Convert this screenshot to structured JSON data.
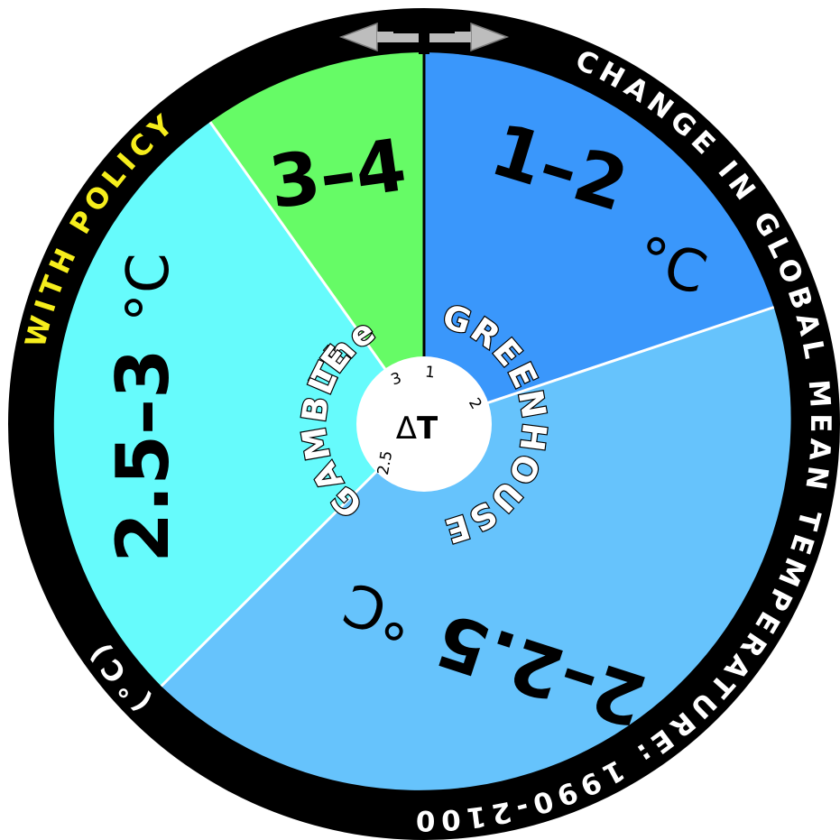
{
  "ring": {
    "policy_label": "WITH POLICY",
    "caption": "CHANGE IN GLOBAL MEAN TEMPERATURE: 1990-2100",
    "unit": "(°C)"
  },
  "title": {
    "word_the": "The",
    "word_greenhouse": "GREENHOUSE",
    "word_gamble": "GAMBLE"
  },
  "hub": {
    "symbol_delta": "Δ",
    "symbol_t": "T",
    "pointer_labels": [
      "1",
      "2",
      "2.5",
      "3"
    ]
  },
  "wedges": [
    {
      "range": "1–2",
      "unit": "°C",
      "color": "#3a97fb"
    },
    {
      "range": "2–2.5",
      "unit": "°C",
      "color": "#66c3fc"
    },
    {
      "range": "2.5–3",
      "unit": "°C",
      "color": "#66fbfc"
    },
    {
      "range": "3–4",
      "unit": "",
      "color": "#66fb66"
    }
  ],
  "colors": {
    "ring": "#000000",
    "ring_text": "#ffffff",
    "policy_text": "#f6ee1c",
    "divider": "#ffffff",
    "hub": "#ffffff",
    "pointer": "#bdbdbd"
  }
}
